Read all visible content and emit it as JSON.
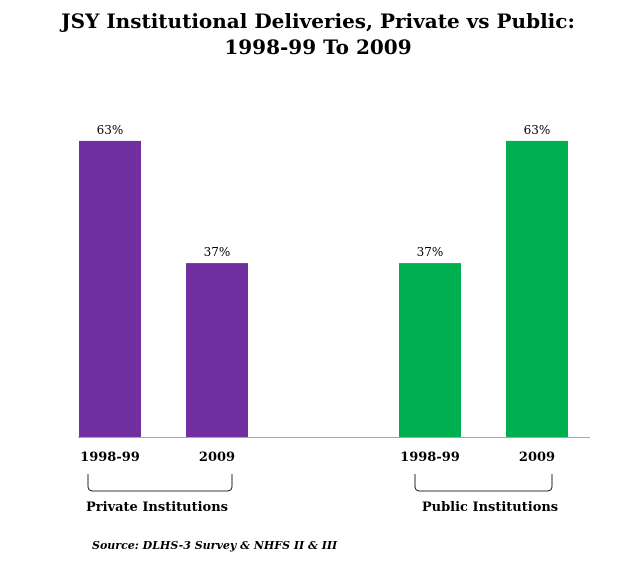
{
  "chart_data": {
    "type": "bar",
    "title_lines": [
      "JSY Institutional Deliveries, Private vs Public:",
      "1998-99 To 2009"
    ],
    "ylim": [
      0,
      70
    ],
    "grid": false,
    "bars": [
      {
        "group": "Private Institutions",
        "category": "1998-99",
        "value": 63,
        "label": "63%",
        "color": "#7030a0"
      },
      {
        "group": "Private Institutions",
        "category": "2009",
        "value": 37,
        "label": "37%",
        "color": "#7030a0"
      },
      {
        "group": "Public Institutions",
        "category": "1998-99",
        "value": 37,
        "label": "37%",
        "color": "#00b050"
      },
      {
        "group": "Public Institutions",
        "category": "2009",
        "value": 63,
        "label": "63%",
        "color": "#00b050"
      }
    ],
    "groups": [
      "Private Institutions",
      "Public Institutions"
    ],
    "source": "Source: DLHS-3 Survey & NHFS II & III"
  }
}
